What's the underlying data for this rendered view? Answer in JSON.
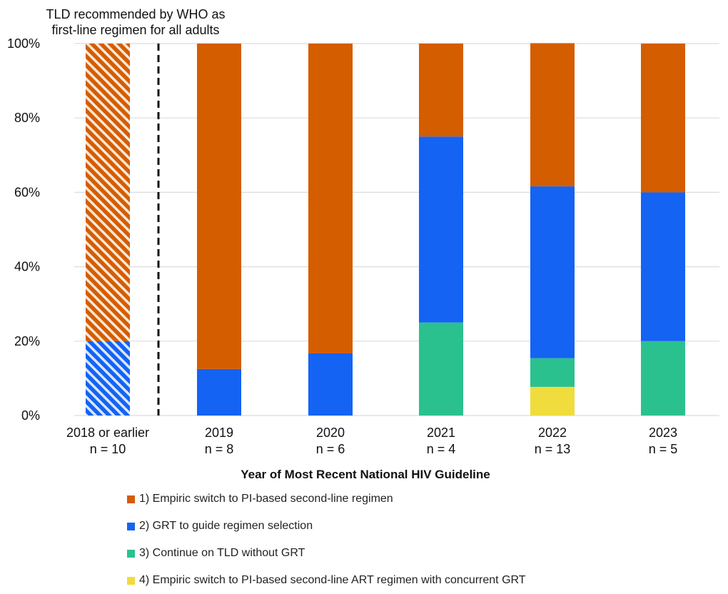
{
  "chart_data": {
    "type": "bar",
    "stacked": true,
    "percent": true,
    "title": "",
    "xlabel": "Year of Most Recent National HIV Guideline",
    "ylabel": "",
    "ylim": [
      0,
      100
    ],
    "yticks": [
      "0%",
      "20%",
      "40%",
      "60%",
      "80%",
      "100%"
    ],
    "ytick_values": [
      0,
      20,
      40,
      60,
      80,
      100
    ],
    "grid": true,
    "categories": [
      "2018 or earlier",
      "2019",
      "2020",
      "2021",
      "2022",
      "2023"
    ],
    "category_n": [
      "n = 10",
      "n = 8",
      "n = 6",
      "n = 4",
      "n = 13",
      "n = 5"
    ],
    "hatched_categories": [
      "2018 or earlier"
    ],
    "series": [
      {
        "name": "4) Empiric switch to PI-based second-line ART regimen with concurrent GRT",
        "color": "#f0dc3c",
        "values": [
          0,
          0,
          0,
          0,
          7.7,
          0
        ]
      },
      {
        "name": "3) Continue on TLD without GRT",
        "color": "#2bc18e",
        "values": [
          0,
          0,
          0,
          25,
          7.7,
          20
        ]
      },
      {
        "name": "2) GRT to guide regimen selection",
        "color": "#1463f3",
        "values": [
          20,
          12.5,
          16.7,
          50,
          46.2,
          40
        ]
      },
      {
        "name": "1) Empiric switch to PI-based second-line regimen",
        "color": "#d45d00",
        "values": [
          80,
          87.5,
          83.3,
          25,
          38.5,
          40
        ]
      }
    ],
    "legend_order": [
      3,
      2,
      1,
      0
    ],
    "legend_position": "bottom-left",
    "annotations": [
      {
        "text_lines": [
          "TLD recommended by WHO as",
          "first-line regimen for all adults"
        ],
        "type": "vertical-dashed-line",
        "between": [
          "2018 or earlier",
          "2019"
        ]
      }
    ]
  }
}
